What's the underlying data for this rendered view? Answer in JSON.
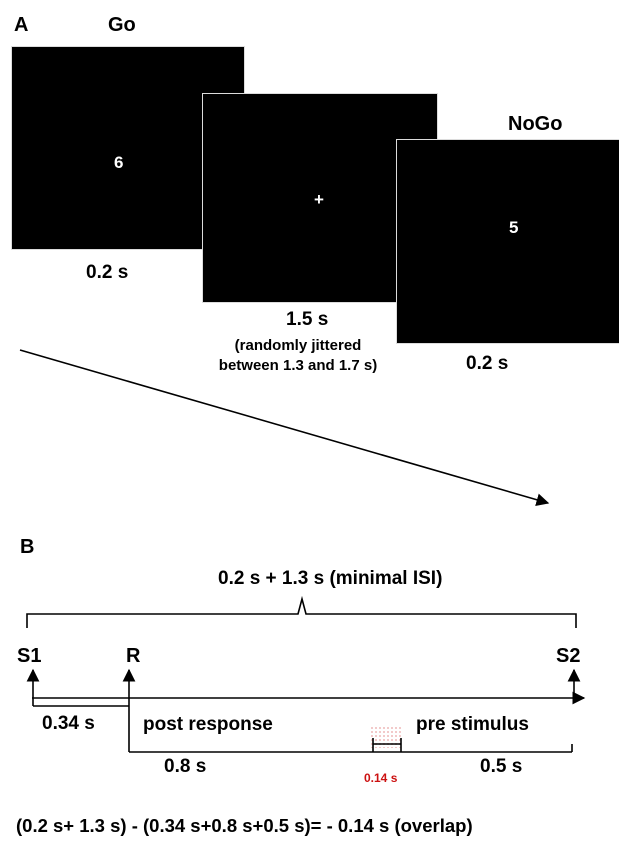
{
  "panel_a": {
    "letter": "A",
    "go_label": "Go",
    "nogo_label": "NoGo",
    "go_stimulus": "6",
    "fixation_stimulus": "+",
    "nogo_stimulus": "5",
    "go_duration": "0.2 s",
    "fixation_duration": "1.5 s",
    "fixation_note_line1": "(randomly jittered",
    "fixation_note_line2": "between 1.3 and 1.7 s)",
    "nogo_duration": "0.2 s"
  },
  "panel_b": {
    "letter": "B",
    "brace_label": "0.2 s + 1.3 s (minimal ISI)",
    "s1_label": "S1",
    "r_label": "R",
    "s2_label": "S2",
    "rt_label": "0.34 s",
    "post_response_label": "post response",
    "post_response_duration": "0.8 s",
    "pre_stimulus_label": "pre stimulus",
    "pre_stimulus_duration": "0.5 s",
    "overlap_label": "0.14 s",
    "overlap_color": "#cc1111",
    "equation": "(0.2 s+ 1.3 s) - (0.34 s+0.8 s+0.5 s)= - 0.14 s (overlap)"
  }
}
